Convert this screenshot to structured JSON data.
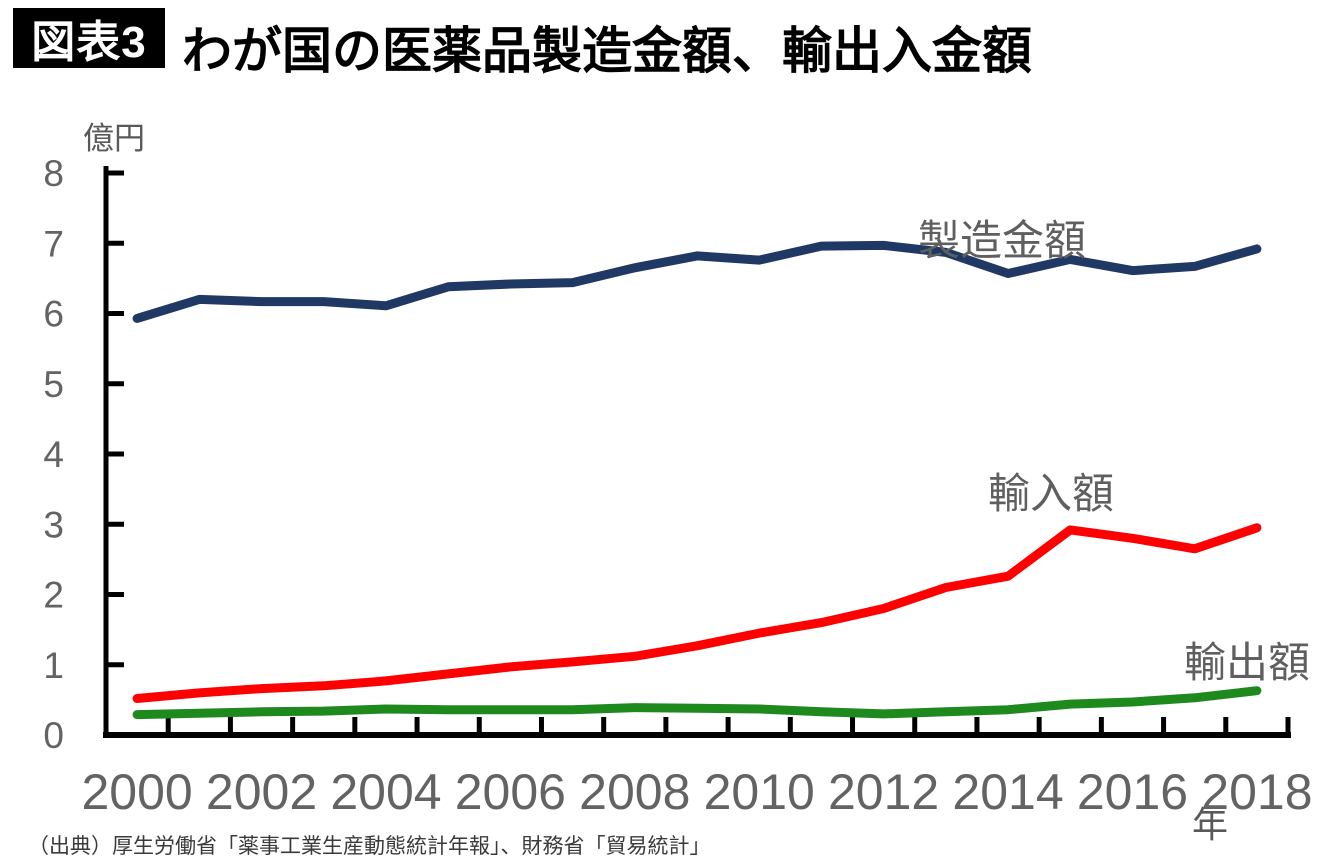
{
  "header": {
    "badge": "図表3",
    "title": "わが国の医薬品製造金額、輸出入金額"
  },
  "source": "（出典）厚生労働省「薬事工業生産動態統計年報」、財務省「貿易統計」",
  "chart_data": {
    "type": "line",
    "title": "わが国の医薬品製造金額、輸出入金額",
    "ylabel": "億円",
    "xlabel": "年",
    "ylim": [
      0,
      8
    ],
    "yticks": [
      0,
      1,
      2,
      3,
      4,
      5,
      6,
      7,
      8
    ],
    "xticks": [
      2000,
      2002,
      2004,
      2006,
      2008,
      2010,
      2012,
      2014,
      2016,
      2018
    ],
    "grid": false,
    "legend_position": "inline-labels-right",
    "x": [
      2000,
      2001,
      2002,
      2003,
      2004,
      2005,
      2006,
      2007,
      2008,
      2009,
      2010,
      2011,
      2012,
      2013,
      2014,
      2015,
      2016,
      2017,
      2018
    ],
    "series": [
      {
        "name": "製造金額",
        "color": "#1f3864",
        "values": [
          5.93,
          6.2,
          6.17,
          6.17,
          6.11,
          6.38,
          6.42,
          6.44,
          6.65,
          6.82,
          6.76,
          6.96,
          6.97,
          6.87,
          6.57,
          6.77,
          6.61,
          6.67,
          6.92
        ]
      },
      {
        "name": "輸入額",
        "color": "#ff0000",
        "values": [
          0.52,
          0.6,
          0.66,
          0.7,
          0.77,
          0.87,
          0.97,
          1.04,
          1.12,
          1.27,
          1.45,
          1.6,
          1.8,
          2.1,
          2.26,
          2.92,
          2.8,
          2.65,
          2.95
        ]
      },
      {
        "name": "輸出額",
        "color": "#1e8a1e",
        "values": [
          0.29,
          0.31,
          0.33,
          0.34,
          0.37,
          0.36,
          0.36,
          0.36,
          0.39,
          0.38,
          0.37,
          0.33,
          0.3,
          0.33,
          0.36,
          0.44,
          0.47,
          0.53,
          0.63
        ]
      }
    ],
    "axis_color": "#000000",
    "tick_label_color": "#636363"
  }
}
